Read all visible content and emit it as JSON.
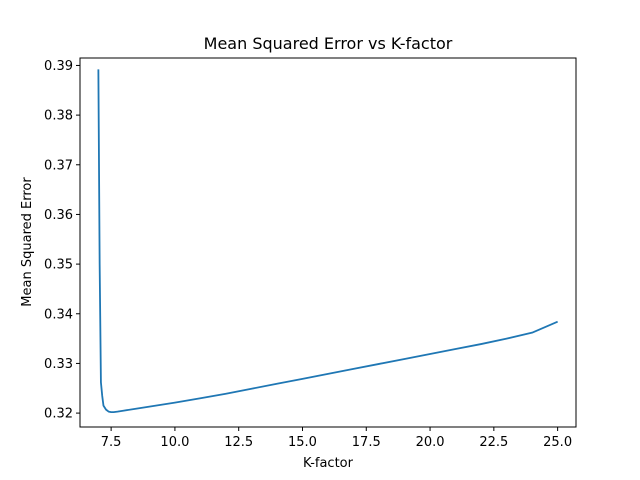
{
  "chart_data": {
    "type": "line",
    "title": "Mean Squared Error vs K-factor",
    "xlabel": "K-factor",
    "ylabel": "Mean Squared Error",
    "xlim": [
      6.28,
      25.72
    ],
    "ylim": [
      0.3172,
      0.3915
    ],
    "x_ticks": [
      {
        "value": 7.5,
        "label": "7.5"
      },
      {
        "value": 10.0,
        "label": "10.0"
      },
      {
        "value": 12.5,
        "label": "12.5"
      },
      {
        "value": 15.0,
        "label": "15.0"
      },
      {
        "value": 17.5,
        "label": "17.5"
      },
      {
        "value": 20.0,
        "label": "20.0"
      },
      {
        "value": 22.5,
        "label": "22.5"
      },
      {
        "value": 25.0,
        "label": "25.0"
      }
    ],
    "y_ticks": [
      {
        "value": 0.32,
        "label": "0.32"
      },
      {
        "value": 0.33,
        "label": "0.33"
      },
      {
        "value": 0.34,
        "label": "0.34"
      },
      {
        "value": 0.35,
        "label": "0.35"
      },
      {
        "value": 0.36,
        "label": "0.36"
      },
      {
        "value": 0.37,
        "label": "0.37"
      },
      {
        "value": 0.38,
        "label": "0.38"
      },
      {
        "value": 0.39,
        "label": "0.39"
      }
    ],
    "grid": false,
    "legend": "none",
    "series": [
      {
        "color": "#1f77b4",
        "x": [
          7.0,
          7.05,
          7.1,
          7.15,
          7.2,
          7.3,
          7.4,
          7.5,
          7.6,
          7.75,
          8.0,
          8.5,
          9.0,
          10.0,
          11.0,
          12.0,
          13.0,
          14.0,
          15.0,
          16.0,
          17.0,
          18.0,
          19.0,
          20.0,
          21.0,
          22.0,
          23.0,
          24.0,
          25.0
        ],
        "y": [
          0.3892,
          0.35,
          0.3262,
          0.3235,
          0.3215,
          0.3207,
          0.3203,
          0.3202,
          0.3202,
          0.3203,
          0.3205,
          0.3209,
          0.3213,
          0.3221,
          0.323,
          0.3239,
          0.3249,
          0.3259,
          0.3269,
          0.3279,
          0.3289,
          0.3299,
          0.3309,
          0.3319,
          0.3329,
          0.3339,
          0.335,
          0.3362,
          0.3384
        ]
      }
    ]
  }
}
